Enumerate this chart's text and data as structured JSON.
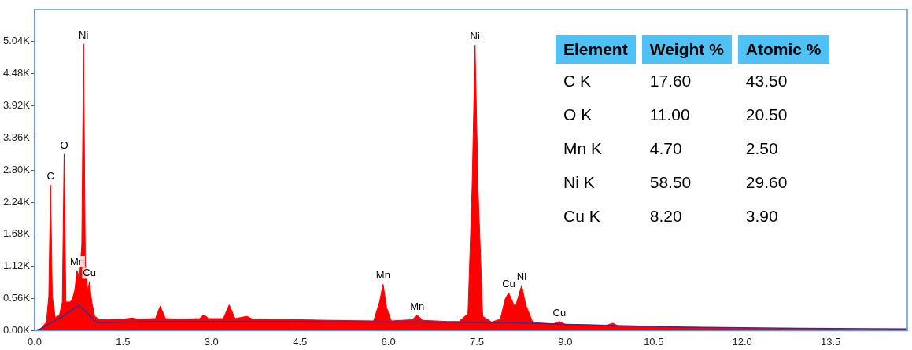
{
  "chart_data": [
    {
      "type": "area",
      "x": [
        0,
        0.1,
        0.2,
        0.24,
        0.27,
        0.3,
        0.35,
        0.42,
        0.47,
        0.5,
        0.53,
        0.6,
        0.64,
        0.68,
        0.72,
        0.76,
        0.8,
        0.83,
        0.86,
        0.9,
        0.93,
        0.97,
        1.02,
        1.1,
        1.5,
        1.65,
        1.75,
        2.05,
        2.13,
        2.22,
        2.5,
        2.8,
        2.87,
        2.95,
        3.2,
        3.3,
        3.4,
        3.6,
        3.7,
        4.5,
        5.0,
        5.75,
        5.85,
        5.91,
        5.97,
        6.05,
        6.4,
        6.49,
        6.58,
        7.0,
        7.2,
        7.35,
        7.42,
        7.47,
        7.52,
        7.6,
        7.75,
        7.9,
        7.98,
        8.04,
        8.15,
        8.26,
        8.33,
        8.45,
        8.8,
        8.9,
        9.0,
        9.7,
        9.8,
        9.9,
        11,
        12,
        13,
        14,
        14.8
      ],
      "series": [
        {
          "color": "#ff0000",
          "values": [
            0,
            30,
            150,
            600,
            2540,
            600,
            230,
            270,
            500,
            3080,
            500,
            500,
            550,
            700,
            1050,
            900,
            1500,
            5000,
            1200,
            700,
            850,
            500,
            250,
            190,
            200,
            220,
            200,
            210,
            430,
            210,
            200,
            210,
            280,
            210,
            210,
            450,
            210,
            250,
            200,
            190,
            180,
            170,
            500,
            810,
            400,
            170,
            190,
            270,
            180,
            160,
            160,
            300,
            2500,
            4980,
            2500,
            250,
            150,
            200,
            550,
            660,
            400,
            790,
            450,
            140,
            120,
            160,
            110,
            90,
            130,
            80,
            60,
            40,
            30,
            20,
            20
          ]
        },
        {
          "type": "line",
          "color": "#2e3192",
          "x": [
            0,
            0.1,
            0.4,
            0.75,
            0.9,
            1.05,
            2,
            4,
            6,
            8,
            9,
            11,
            13,
            14.8
          ],
          "values": [
            0,
            30,
            200,
            440,
            300,
            140,
            160,
            160,
            150,
            140,
            110,
            60,
            40,
            30
          ]
        }
      ],
      "xlim": [
        0,
        14.8
      ],
      "xticks": [
        {
          "value": 0,
          "label": "0.0"
        },
        {
          "value": 1.5,
          "label": "1.5"
        },
        {
          "value": 3,
          "label": "3.0"
        },
        {
          "value": 4.5,
          "label": "4.5"
        },
        {
          "value": 6,
          "label": "6.0"
        },
        {
          "value": 7.5,
          "label": "7.5"
        },
        {
          "value": 9,
          "label": "9.0"
        },
        {
          "value": 10.5,
          "label": "10.5"
        },
        {
          "value": 12,
          "label": "12.0"
        },
        {
          "value": 13.5,
          "label": "13.5"
        }
      ],
      "ylim": [
        0,
        5600
      ],
      "yticks": [
        {
          "value": 0,
          "label": "0.00K"
        },
        {
          "value": 560,
          "label": "0.56K"
        },
        {
          "value": 1120,
          "label": "1.12K"
        },
        {
          "value": 1680,
          "label": "1.68K"
        },
        {
          "value": 2240,
          "label": "2.24K"
        },
        {
          "value": 2800,
          "label": "2.80K"
        },
        {
          "value": 3360,
          "label": "3.36K"
        },
        {
          "value": 3920,
          "label": "3.92K"
        },
        {
          "value": 4480,
          "label": "4.48K"
        },
        {
          "value": 5040,
          "label": "5.04K"
        }
      ],
      "grid": false,
      "legend": false,
      "marker": "none",
      "annotations": [
        {
          "text": "C",
          "x": 0.27,
          "y": 2540
        },
        {
          "text": "O",
          "x": 0.5,
          "y": 3080
        },
        {
          "text": "Ni",
          "x": 0.83,
          "y": 5000
        },
        {
          "text": "Mn",
          "x": 0.72,
          "y": 1050
        },
        {
          "text": "Cu",
          "x": 0.93,
          "y": 850
        },
        {
          "text": "Mn",
          "x": 5.91,
          "y": 810
        },
        {
          "text": "Mn",
          "x": 6.49,
          "y": 270
        },
        {
          "text": "Ni",
          "x": 7.47,
          "y": 4980
        },
        {
          "text": "Cu",
          "x": 8.04,
          "y": 660
        },
        {
          "text": "Ni",
          "x": 8.26,
          "y": 790
        },
        {
          "text": "Cu",
          "x": 8.9,
          "y": 160
        }
      ]
    },
    {
      "type": "other",
      "categories": [
        "Element",
        "Weight %",
        "Atomic %"
      ],
      "y_categories": [
        "C K",
        "O K",
        "Mn K",
        "Ni K",
        "Cu K"
      ],
      "cell_labels": [
        [
          "17.60",
          "43.50"
        ],
        [
          "11.00",
          "20.50"
        ],
        [
          "4.70",
          "2.50"
        ],
        [
          "58.50",
          "29.60"
        ],
        [
          "8.20",
          "3.90"
        ]
      ],
      "color": "#4fc1f5"
    }
  ]
}
